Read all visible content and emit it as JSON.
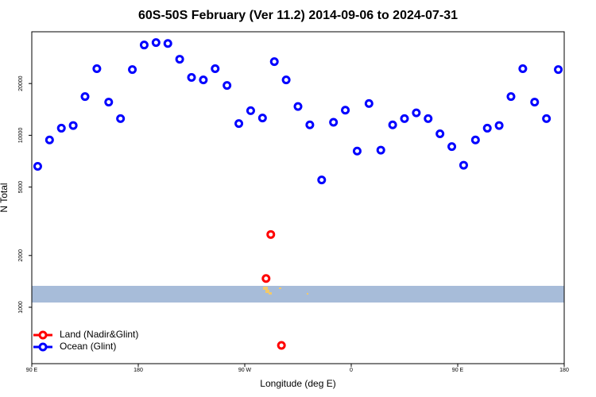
{
  "chart_data": {
    "type": "scatter",
    "title": "60S-50S February (Ver 11.2)   2014-09-06 to 2024-07-31",
    "x_label": "Longitude (deg E)",
    "y_label": "N Total",
    "xlim": [
      90,
      540
    ],
    "xticks": [
      {
        "value": 90,
        "label": "90 E"
      },
      {
        "value": 180,
        "label": "180"
      },
      {
        "value": 270,
        "label": "90 W"
      },
      {
        "value": 360,
        "label": "0"
      },
      {
        "value": 450,
        "label": "90 E"
      },
      {
        "value": 540,
        "label": "180"
      }
    ],
    "ylim": [
      470,
      40000
    ],
    "yticks": [
      1000,
      2000,
      5000,
      10000,
      20000
    ],
    "ylog": true,
    "legend": "lower left",
    "series": [
      {
        "name": "Land (Nadir&Glint)",
        "color": "#ff0000",
        "x": [
          292,
          288,
          301
        ],
        "values": [
          2650,
          1470,
          600
        ]
      },
      {
        "name": "Ocean (Glint)",
        "color": "#0000ff",
        "x": [
          95,
          105,
          115,
          125,
          135,
          145,
          155,
          165,
          175,
          185,
          195,
          205,
          215,
          225,
          235,
          245,
          255,
          265,
          275,
          285,
          295,
          305,
          315,
          325,
          335,
          345,
          355,
          365,
          375,
          385,
          395,
          405,
          415,
          425,
          435,
          445,
          455,
          465,
          475,
          485,
          495,
          505,
          515,
          525,
          535
        ],
        "values": [
          6600,
          9400,
          11000,
          11400,
          16800,
          24400,
          15600,
          12500,
          24100,
          33500,
          34600,
          34200,
          27700,
          21700,
          21000,
          24400,
          19500,
          11700,
          13900,
          12600,
          26800,
          21000,
          14700,
          11500,
          5500,
          11900,
          14000,
          8100,
          15300,
          8200,
          11500,
          12500,
          13500,
          12500,
          10200,
          8600,
          6700,
          9400,
          11000,
          11400,
          16800,
          24400,
          15600,
          12500,
          24100
        ]
      }
    ]
  }
}
